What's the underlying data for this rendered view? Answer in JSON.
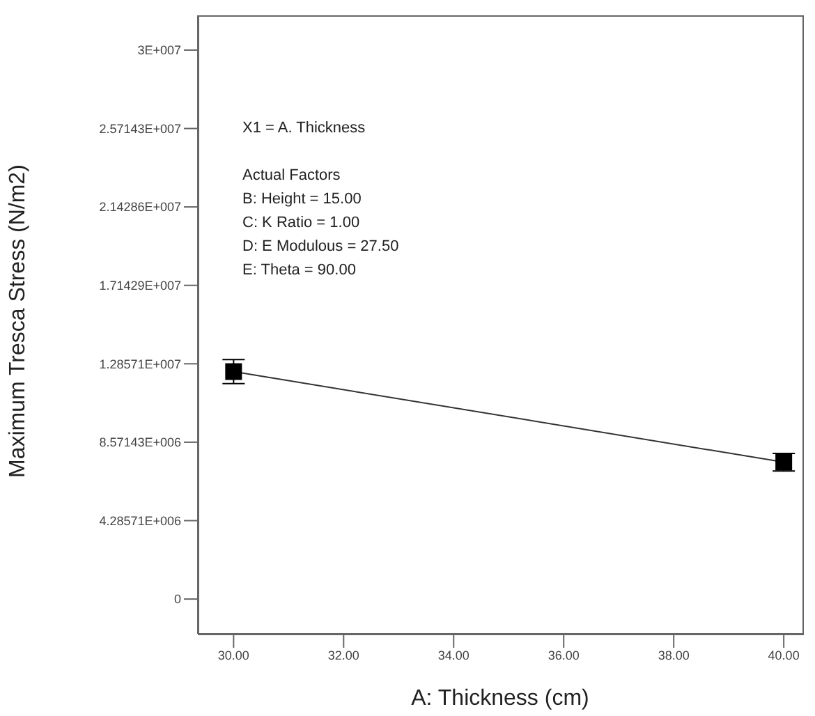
{
  "chart_data": {
    "type": "line",
    "xlabel": "A: Thickness (cm)",
    "ylabel": "Maximum Tresca Stress (N/m2)",
    "x": [
      30,
      40
    ],
    "series": [
      {
        "color": "#000000",
        "values": [
          12430000,
          7480000
        ],
        "errors": [
          660000,
          480000
        ]
      }
    ],
    "xlim": [
      29.35,
      40.34
    ],
    "xticks": [
      {
        "value": 30,
        "label": "30.00"
      },
      {
        "value": 32,
        "label": "32.00"
      },
      {
        "value": 34,
        "label": "34.00"
      },
      {
        "value": 36,
        "label": "36.00"
      },
      {
        "value": 38,
        "label": "38.00"
      },
      {
        "value": 40,
        "label": "40.00"
      }
    ],
    "ylim": [
      -1900000,
      31900000
    ],
    "yticks": [
      0,
      {
        "value": 4285710,
        "label": "4.28571E+006"
      },
      {
        "value": 8571430,
        "label": "8.57143E+006"
      },
      {
        "value": 12857100,
        "label": "1.28571E+007"
      },
      {
        "value": 17142900,
        "label": "1.71429E+007"
      },
      {
        "value": 21428600,
        "label": "2.14286E+007"
      },
      {
        "value": 25714300,
        "label": "2.57143E+007"
      },
      {
        "value": 30000000,
        "label": "3E+007"
      }
    ],
    "annotations": [
      "X1 = A. Thickness",
      "Actual Factors",
      "B: Height = 15.00",
      "C: K Ratio = 1.00",
      "D: E Modulous = 27.50",
      "E: Theta = 90.00"
    ],
    "marker": "square",
    "line_style": "solid",
    "grid": false,
    "legend": false
  }
}
